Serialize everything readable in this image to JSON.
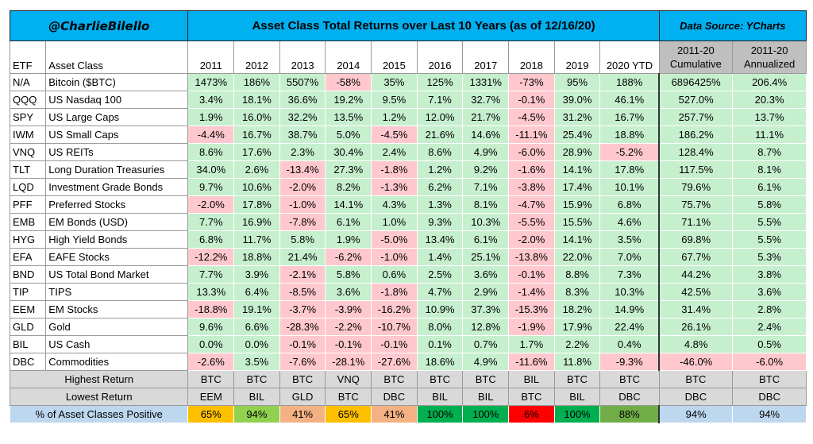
{
  "header": {
    "brand": "@CharlieBilello",
    "title": "Asset Class Total Returns over Last 10 Years (as of 12/16/20)",
    "source": "Data Source: YCharts"
  },
  "columns": {
    "etf": "ETF",
    "asset": "Asset Class",
    "years": [
      "2011",
      "2012",
      "2013",
      "2014",
      "2015",
      "2016",
      "2017",
      "2018",
      "2019",
      "2020 YTD"
    ],
    "cumulative": [
      "2011-20",
      "Cumulative"
    ],
    "annualized": [
      "2011-20",
      "Annualized"
    ]
  },
  "rows": [
    {
      "etf": "N/A",
      "asset": "Bitcoin ($BTC)",
      "returns": [
        "1473%",
        "186%",
        "5507%",
        "-58%",
        "35%",
        "125%",
        "1331%",
        "-73%",
        "95%",
        "188%"
      ],
      "cumulative": "6896425%",
      "annualized": "206.4%"
    },
    {
      "etf": "QQQ",
      "asset": "US Nasdaq 100",
      "returns": [
        "3.4%",
        "18.1%",
        "36.6%",
        "19.2%",
        "9.5%",
        "7.1%",
        "32.7%",
        "-0.1%",
        "39.0%",
        "46.1%"
      ],
      "cumulative": "527.0%",
      "annualized": "20.3%"
    },
    {
      "etf": "SPY",
      "asset": "US Large Caps",
      "returns": [
        "1.9%",
        "16.0%",
        "32.2%",
        "13.5%",
        "1.2%",
        "12.0%",
        "21.7%",
        "-4.5%",
        "31.2%",
        "16.7%"
      ],
      "cumulative": "257.7%",
      "annualized": "13.7%"
    },
    {
      "etf": "IWM",
      "asset": "US Small Caps",
      "returns": [
        "-4.4%",
        "16.7%",
        "38.7%",
        "5.0%",
        "-4.5%",
        "21.6%",
        "14.6%",
        "-11.1%",
        "25.4%",
        "18.8%"
      ],
      "cumulative": "186.2%",
      "annualized": "11.1%"
    },
    {
      "etf": "VNQ",
      "asset": "US REITs",
      "returns": [
        "8.6%",
        "17.6%",
        "2.3%",
        "30.4%",
        "2.4%",
        "8.6%",
        "4.9%",
        "-6.0%",
        "28.9%",
        "-5.2%"
      ],
      "cumulative": "128.4%",
      "annualized": "8.7%"
    },
    {
      "etf": "TLT",
      "asset": "Long Duration Treasuries",
      "returns": [
        "34.0%",
        "2.6%",
        "-13.4%",
        "27.3%",
        "-1.8%",
        "1.2%",
        "9.2%",
        "-1.6%",
        "14.1%",
        "17.8%"
      ],
      "cumulative": "117.5%",
      "annualized": "8.1%"
    },
    {
      "etf": "LQD",
      "asset": "Investment Grade Bonds",
      "returns": [
        "9.7%",
        "10.6%",
        "-2.0%",
        "8.2%",
        "-1.3%",
        "6.2%",
        "7.1%",
        "-3.8%",
        "17.4%",
        "10.1%"
      ],
      "cumulative": "79.6%",
      "annualized": "6.1%"
    },
    {
      "etf": "PFF",
      "asset": "Preferred Stocks",
      "returns": [
        "-2.0%",
        "17.8%",
        "-1.0%",
        "14.1%",
        "4.3%",
        "1.3%",
        "8.1%",
        "-4.7%",
        "15.9%",
        "6.8%"
      ],
      "cumulative": "75.7%",
      "annualized": "5.8%"
    },
    {
      "etf": "EMB",
      "asset": "EM Bonds (USD)",
      "returns": [
        "7.7%",
        "16.9%",
        "-7.8%",
        "6.1%",
        "1.0%",
        "9.3%",
        "10.3%",
        "-5.5%",
        "15.5%",
        "4.6%"
      ],
      "cumulative": "71.1%",
      "annualized": "5.5%"
    },
    {
      "etf": "HYG",
      "asset": "High Yield Bonds",
      "returns": [
        "6.8%",
        "11.7%",
        "5.8%",
        "1.9%",
        "-5.0%",
        "13.4%",
        "6.1%",
        "-2.0%",
        "14.1%",
        "3.5%"
      ],
      "cumulative": "69.8%",
      "annualized": "5.5%"
    },
    {
      "etf": "EFA",
      "asset": "EAFE Stocks",
      "returns": [
        "-12.2%",
        "18.8%",
        "21.4%",
        "-6.2%",
        "-1.0%",
        "1.4%",
        "25.1%",
        "-13.8%",
        "22.0%",
        "7.0%"
      ],
      "cumulative": "67.7%",
      "annualized": "5.3%"
    },
    {
      "etf": "BND",
      "asset": "US Total Bond Market",
      "returns": [
        "7.7%",
        "3.9%",
        "-2.1%",
        "5.8%",
        "0.6%",
        "2.5%",
        "3.6%",
        "-0.1%",
        "8.8%",
        "7.3%"
      ],
      "cumulative": "44.2%",
      "annualized": "3.8%"
    },
    {
      "etf": "TIP",
      "asset": "TIPS",
      "returns": [
        "13.3%",
        "6.4%",
        "-8.5%",
        "3.6%",
        "-1.8%",
        "4.7%",
        "2.9%",
        "-1.4%",
        "8.3%",
        "10.3%"
      ],
      "cumulative": "42.5%",
      "annualized": "3.6%"
    },
    {
      "etf": "EEM",
      "asset": "EM Stocks",
      "returns": [
        "-18.8%",
        "19.1%",
        "-3.7%",
        "-3.9%",
        "-16.2%",
        "10.9%",
        "37.3%",
        "-15.3%",
        "18.2%",
        "14.9%"
      ],
      "cumulative": "31.4%",
      "annualized": "2.8%"
    },
    {
      "etf": "GLD",
      "asset": "Gold",
      "returns": [
        "9.6%",
        "6.6%",
        "-28.3%",
        "-2.2%",
        "-10.7%",
        "8.0%",
        "12.8%",
        "-1.9%",
        "17.9%",
        "22.4%"
      ],
      "cumulative": "26.1%",
      "annualized": "2.4%"
    },
    {
      "etf": "BIL",
      "asset": "US Cash",
      "returns": [
        "0.0%",
        "0.0%",
        "-0.1%",
        "-0.1%",
        "-0.1%",
        "0.1%",
        "0.7%",
        "1.7%",
        "2.2%",
        "0.4%"
      ],
      "cumulative": "4.8%",
      "annualized": "0.5%"
    },
    {
      "etf": "DBC",
      "asset": "Commodities",
      "returns": [
        "-2.6%",
        "3.5%",
        "-7.6%",
        "-28.1%",
        "-27.6%",
        "18.6%",
        "4.9%",
        "-11.6%",
        "11.8%",
        "-9.3%"
      ],
      "cumulative": "-46.0%",
      "annualized": "-6.0%"
    }
  ],
  "summary": {
    "highest": {
      "label": "Highest Return",
      "values": [
        "BTC",
        "BTC",
        "BTC",
        "VNQ",
        "BTC",
        "BTC",
        "BTC",
        "BIL",
        "BTC",
        "BTC",
        "BTC",
        "BTC"
      ]
    },
    "lowest": {
      "label": "Lowest Return",
      "values": [
        "EEM",
        "BIL",
        "GLD",
        "BTC",
        "DBC",
        "BIL",
        "BIL",
        "BTC",
        "BIL",
        "DBC",
        "DBC",
        "DBC"
      ]
    },
    "positive": {
      "label": "% of Asset Classes Positive",
      "values": [
        "65%",
        "94%",
        "41%",
        "65%",
        "41%",
        "100%",
        "100%",
        "6%",
        "100%",
        "88%",
        "94%",
        "94%"
      ],
      "colors": [
        "#ffc000",
        "#92d050",
        "#f4b183",
        "#ffc000",
        "#f4b183",
        "#00b050",
        "#00b050",
        "#ff0000",
        "#00b050",
        "#70ad47",
        "#bdd7ee",
        "#bdd7ee"
      ]
    }
  },
  "colors": {
    "positive": "#c6efce",
    "negative": "#ffc7ce",
    "header": "#00b0f0",
    "summary": "#d9d9d9"
  }
}
